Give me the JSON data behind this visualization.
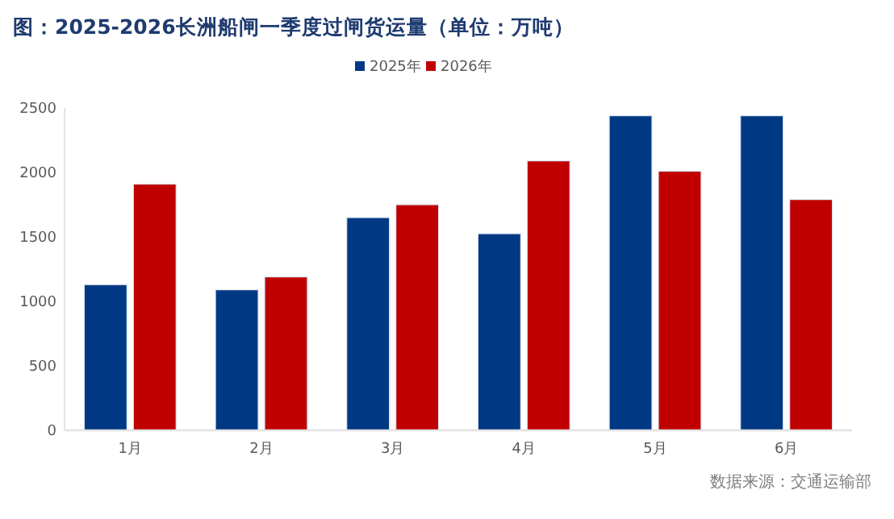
{
  "chart_data": {
    "type": "bar",
    "title": "图：2025-2026长洲船闸一季度过闸货运量（单位：万吨）",
    "categories": [
      "1月",
      "2月",
      "3月",
      "4月",
      "5月",
      "6月"
    ],
    "series": [
      {
        "name": "2025年",
        "color": "#003884",
        "values": [
          1130,
          1090,
          1650,
          1525,
          2440,
          2440
        ]
      },
      {
        "name": "2026年",
        "color": "#c00000",
        "values": [
          1910,
          1190,
          1750,
          2090,
          2010,
          1790
        ]
      }
    ],
    "ylim": [
      0,
      2500
    ],
    "yticks": [
      0,
      500,
      1000,
      1500,
      2000,
      2500
    ],
    "grid": false,
    "legend": "top",
    "annotations": [
      "数据来源：交通运输部"
    ]
  }
}
